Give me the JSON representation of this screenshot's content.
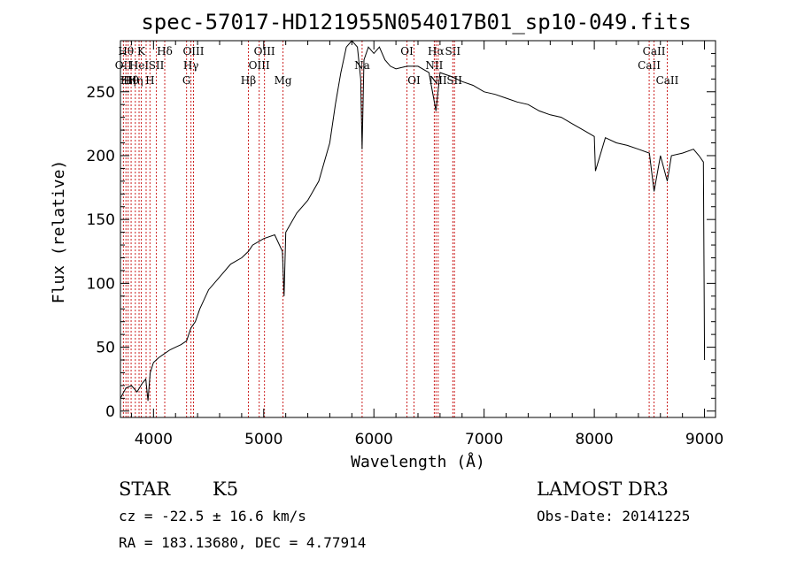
{
  "chart_data": {
    "type": "line",
    "title": "spec-57017-HD121955N054017B01_sp10-049.fits",
    "xlabel": "Wavelength (Å)",
    "ylabel": "Flux (relative)",
    "xlim": [
      3700,
      9100
    ],
    "ylim": [
      -5,
      290
    ],
    "xticks": [
      4000,
      5000,
      6000,
      7000,
      8000,
      9000
    ],
    "yticks": [
      0,
      50,
      100,
      150,
      200,
      250
    ],
    "grid": false,
    "series": [
      {
        "x": [
          3700,
          3750,
          3800,
          3850,
          3900,
          3930,
          3950,
          3970,
          4000,
          4050,
          4100,
          4150,
          4200,
          4250,
          4300,
          4340,
          4380,
          4420,
          4500,
          4600,
          4700,
          4800,
          4861,
          4900,
          5000,
          5100,
          5170,
          5185,
          5200,
          5300,
          5400,
          5500,
          5600,
          5650,
          5700,
          5750,
          5800,
          5850,
          5880,
          5893,
          5910,
          5950,
          6000,
          6050,
          6100,
          6150,
          6200,
          6300,
          6400,
          6500,
          6563,
          6600,
          6700,
          6800,
          6900,
          7000,
          7100,
          7200,
          7300,
          7400,
          7500,
          7600,
          7700,
          7800,
          7900,
          8000,
          8010,
          8100,
          8200,
          8300,
          8400,
          8500,
          8542,
          8600,
          8662,
          8700,
          8800,
          8900,
          8950,
          8990,
          9000
        ],
        "values": [
          10,
          18,
          20,
          15,
          22,
          25,
          8,
          30,
          38,
          42,
          45,
          48,
          50,
          52,
          55,
          65,
          70,
          80,
          95,
          105,
          115,
          120,
          125,
          130,
          135,
          138,
          125,
          90,
          140,
          155,
          165,
          180,
          210,
          240,
          265,
          285,
          290,
          285,
          260,
          205,
          275,
          285,
          280,
          285,
          275,
          270,
          268,
          270,
          270,
          265,
          235,
          265,
          262,
          258,
          255,
          250,
          248,
          245,
          242,
          240,
          235,
          232,
          230,
          225,
          220,
          215,
          188,
          214,
          210,
          208,
          205,
          202,
          172,
          200,
          180,
          200,
          202,
          205,
          200,
          195,
          40
        ]
      }
    ],
    "line_markers": [
      {
        "x": 3727,
        "label": "OII",
        "row": 2
      },
      {
        "x": 3750,
        "label": "Hθ",
        "row": 1
      },
      {
        "x": 3770,
        "label": "Hη",
        "row": 3
      },
      {
        "x": 3797,
        "label": "Hθ",
        "row": 3
      },
      {
        "x": 3835,
        "label": "Hη",
        "row": 3
      },
      {
        "x": 3869,
        "label": "HeI",
        "row": 2
      },
      {
        "x": 3889,
        "label": "K",
        "row": 1
      },
      {
        "x": 3933,
        "label": "",
        "row": 0
      },
      {
        "x": 3968,
        "label": "H",
        "row": 3
      },
      {
        "x": 4026,
        "label": "SII",
        "row": 2
      },
      {
        "x": 4102,
        "label": "Hδ",
        "row": 1
      },
      {
        "x": 4300,
        "label": "G",
        "row": 3
      },
      {
        "x": 4340,
        "label": "Hγ",
        "row": 2
      },
      {
        "x": 4363,
        "label": "OIII",
        "row": 1
      },
      {
        "x": 4861,
        "label": "Hβ",
        "row": 3
      },
      {
        "x": 4959,
        "label": "OIII",
        "row": 2
      },
      {
        "x": 5007,
        "label": "OIII",
        "row": 1
      },
      {
        "x": 5175,
        "label": "Mg",
        "row": 3
      },
      {
        "x": 5893,
        "label": "Na",
        "row": 2
      },
      {
        "x": 6300,
        "label": "OI",
        "row": 1
      },
      {
        "x": 6364,
        "label": "OI",
        "row": 3
      },
      {
        "x": 6548,
        "label": "NII",
        "row": 2
      },
      {
        "x": 6563,
        "label": "Hα",
        "row": 1
      },
      {
        "x": 6583,
        "label": "NII",
        "row": 3
      },
      {
        "x": 6716,
        "label": "SII",
        "row": 1
      },
      {
        "x": 6731,
        "label": "SII",
        "row": 3
      },
      {
        "x": 8498,
        "label": "CaII",
        "row": 2
      },
      {
        "x": 8542,
        "label": "CaII",
        "row": 1
      },
      {
        "x": 8662,
        "label": "CaII",
        "row": 3
      }
    ]
  },
  "info": {
    "object_class": "STAR",
    "subclass": "K5",
    "survey": "LAMOST DR3",
    "cz_line": "cz = -22.5 ± 16.6 km/s",
    "obs_date_line": "Obs-Date: 20141225",
    "radec_line": "RA = 183.13680, DEC =   4.77914"
  },
  "colors": {
    "spectrum": "#000000",
    "marker_line": "#cc2222",
    "axis": "#000000"
  }
}
